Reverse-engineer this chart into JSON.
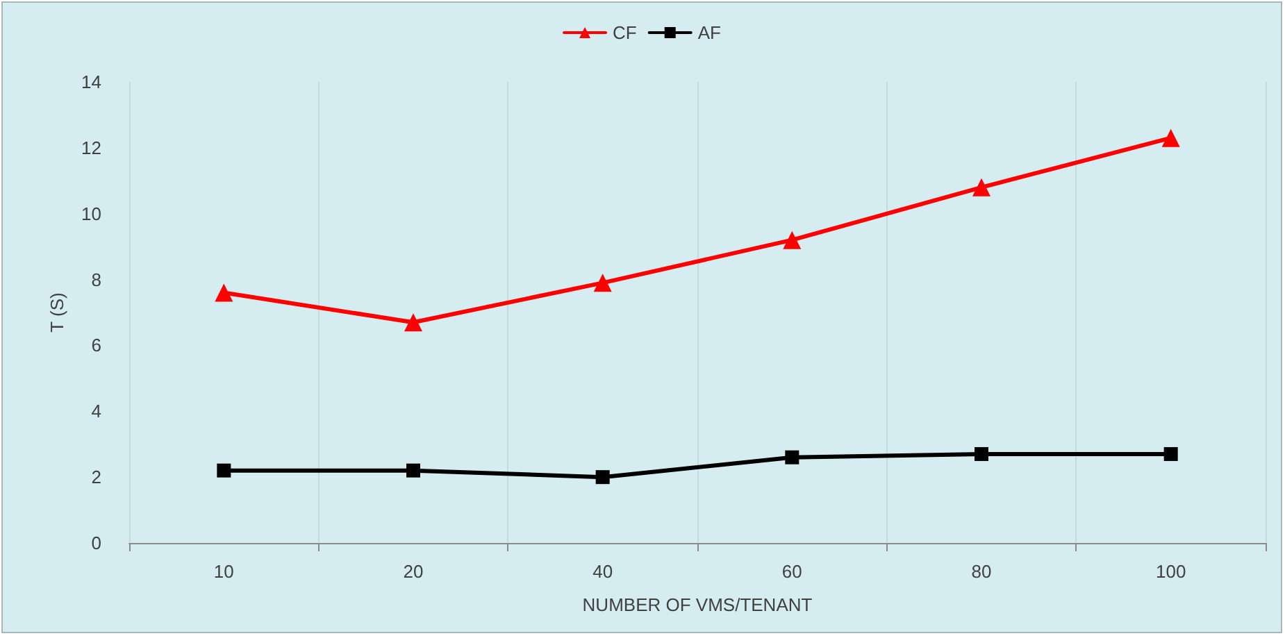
{
  "chart_data": {
    "type": "line",
    "xlabel": "NUMBER OF VMS/TENANT",
    "ylabel": "T (S)",
    "categories": [
      "10",
      "20",
      "40",
      "60",
      "80",
      "100"
    ],
    "series": [
      {
        "name": "CF",
        "color": "#ff0000",
        "marker": "triangle",
        "values": [
          7.6,
          6.7,
          7.9,
          9.2,
          10.8,
          12.3
        ]
      },
      {
        "name": "AF",
        "color": "#000000",
        "marker": "square",
        "values": [
          2.2,
          2.2,
          2.0,
          2.6,
          2.7,
          2.7
        ]
      }
    ],
    "ylim": [
      0,
      14
    ],
    "yticks": [
      0,
      2,
      4,
      6,
      8,
      10,
      12,
      14
    ],
    "grid": "x",
    "legend": "top",
    "line_style": "solid"
  }
}
